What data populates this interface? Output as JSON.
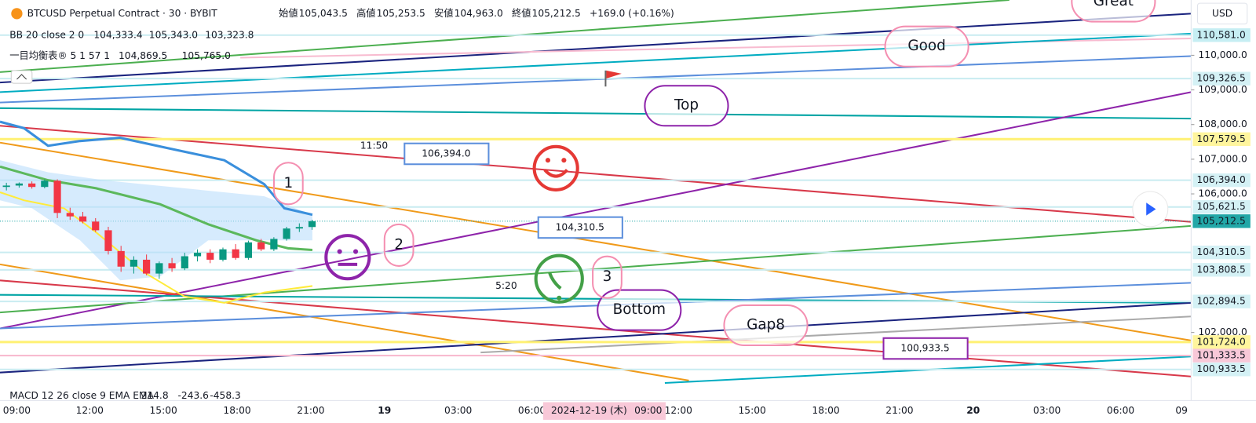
{
  "header": {
    "symbol": "BTCUSD Perpetual Contract · 30 · BYBIT",
    "ohlc": [
      {
        "label": "始値",
        "value": "105,043.5"
      },
      {
        "label": "高値",
        "value": "105,253.5"
      },
      {
        "label": "安値",
        "value": "104,963.0"
      },
      {
        "label": "終値",
        "value": "105,212.5"
      }
    ],
    "change": "+169.0 (+0.16%)"
  },
  "indicators": [
    {
      "name": "BB 20 close 2 0",
      "values": [
        "104,333.4",
        "105,343.0",
        "103,323.8"
      ],
      "colors": [
        "#089981",
        "#2962ff",
        "#f2a900"
      ]
    },
    {
      "name": "一目均衡表® 5 1 57 1",
      "values": [
        "104,869.5",
        "105,765.0"
      ],
      "colors": [
        "#f77c80",
        "#2962ff"
      ]
    },
    {
      "name": "MACD 12 26 close 9 EMA EMA",
      "values": [
        "214.8",
        "-243.6",
        "-458.3"
      ],
      "colors": [
        "#2196f3",
        "#2196f3",
        "#ff6d00"
      ]
    }
  ],
  "currency": "USD",
  "chart_data": {
    "type": "candlestick",
    "ylim": [
      100035,
      111595
    ],
    "yticks": [
      {
        "value": 110000,
        "label": "110,000.0"
      },
      {
        "value": 109000,
        "label": "109,000.0"
      },
      {
        "value": 108000,
        "label": "108,000.0"
      },
      {
        "value": 107000,
        "label": "107,000.0"
      },
      {
        "value": 106000,
        "label": "106,000.0"
      },
      {
        "value": 102000,
        "label": "102,000.0"
      }
    ],
    "price_labels": [
      {
        "value": 110581,
        "label": "110,581.0",
        "color": "#c6eef3"
      },
      {
        "value": 109326.5,
        "label": "109,326.5",
        "color": "#d4f1f5"
      },
      {
        "value": 107579.5,
        "label": "107,579.5",
        "color": "#fff59d"
      },
      {
        "value": 106394,
        "label": "106,394.0",
        "color": "#d4f1f5"
      },
      {
        "value": 105621.5,
        "label": "105,621.5",
        "color": "#d4f1f5"
      },
      {
        "value": 105212.5,
        "label": "105,212.5",
        "color": "#22a7a7"
      },
      {
        "value": 104310.5,
        "label": "104,310.5",
        "color": "#d4f1f5"
      },
      {
        "value": 103808.5,
        "label": "103,808.5",
        "color": "#d4f1f5"
      },
      {
        "value": 102894.5,
        "label": "102,894.5",
        "color": "#d4f1f5"
      },
      {
        "value": 101724,
        "label": "101,724.0",
        "color": "#fff59d"
      },
      {
        "value": 101333.5,
        "label": "101,333.5",
        "color": "#f8c8d8"
      },
      {
        "value": 100933.5,
        "label": "100,933.5",
        "color": "#d4f1f5"
      }
    ],
    "up_color": "#089981",
    "down_color": "#f23645",
    "candles": {
      "open": [
        106200,
        106240,
        106300,
        106200,
        106380,
        105450,
        105350,
        105200,
        104950,
        104350,
        103900,
        104100,
        103700,
        104000,
        103850,
        104200,
        104300,
        104100,
        104400,
        104150,
        104600,
        104400,
        104700,
        105000,
        105043.5
      ],
      "high": [
        106320,
        106330,
        106360,
        106420,
        106420,
        105600,
        105480,
        105300,
        105050,
        104500,
        104200,
        104250,
        104050,
        104150,
        104300,
        104400,
        104400,
        104450,
        104550,
        104650,
        104700,
        104750,
        105050,
        105150,
        105253.5
      ],
      "low": [
        106100,
        106180,
        106150,
        106160,
        105300,
        105250,
        105150,
        104900,
        104250,
        103750,
        103700,
        103650,
        103550,
        103750,
        103800,
        104050,
        104000,
        104050,
        104100,
        104100,
        104350,
        104350,
        104650,
        104900,
        104963
      ],
      "close": [
        106240,
        106300,
        106200,
        106380,
        105450,
        105350,
        105200,
        104950,
        104350,
        103900,
        104100,
        103700,
        104000,
        103850,
        104200,
        104300,
        104100,
        104400,
        104150,
        104600,
        104400,
        104700,
        105000,
        105043.5,
        105212.5
      ]
    }
  },
  "time_axis": {
    "labels": [
      "09:00",
      "12:00",
      "15:00",
      "18:00",
      "21:00",
      "19",
      "03:00",
      "06:00",
      "12:00",
      "15:00",
      "18:00",
      "21:00",
      "20",
      "03:00",
      "06:00",
      "09"
    ],
    "crosshair": {
      "date": "2024-12-19 (木)",
      "time": "09:00"
    }
  },
  "annotations": {
    "callouts": [
      "Great",
      "Good",
      "Top",
      "Bottom",
      "Gap8"
    ],
    "numbers": [
      "1",
      "2",
      "3"
    ],
    "price_notes": [
      "106,394.0",
      "104,310.5",
      "100,933.5"
    ],
    "durations": [
      "11:50",
      "5:20"
    ]
  }
}
